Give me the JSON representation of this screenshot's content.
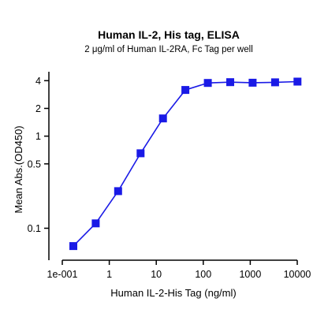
{
  "chart_data": {
    "type": "line",
    "title": "Human IL-2, His tag, ELISA",
    "subtitle": "2 μg/ml of Human IL-2RA, Fc Tag per well",
    "xlabel": "Human IL-2-His Tag (ng/ml)",
    "ylabel": "Mean Abs.(OD450)",
    "x_scale": "log",
    "y_scale": "log",
    "xlim": [
      0.1,
      10000
    ],
    "ylim": [
      0.045,
      5
    ],
    "x_ticks": [
      {
        "value": 0.1,
        "label": "1e-001"
      },
      {
        "value": 1,
        "label": "1"
      },
      {
        "value": 10,
        "label": "10"
      },
      {
        "value": 100,
        "label": "100"
      },
      {
        "value": 1000,
        "label": "1000"
      },
      {
        "value": 10000,
        "label": "10000"
      }
    ],
    "y_ticks": [
      {
        "value": 0.1,
        "label": "0.1"
      },
      {
        "value": 0.5,
        "label": "0.5"
      },
      {
        "value": 1,
        "label": "1"
      },
      {
        "value": 2,
        "label": "2"
      },
      {
        "value": 4,
        "label": "4"
      }
    ],
    "grid": false,
    "legend": "none",
    "series_color": "#1a1ae6",
    "marker": "square",
    "series": [
      {
        "x": [
          0.1715,
          0.5144,
          1.543,
          4.63,
          13.89,
          41.67,
          125,
          375,
          1125,
          3375,
          10125
        ],
        "y": [
          0.064,
          0.113,
          0.253,
          0.651,
          1.556,
          3.17,
          3.776,
          3.852,
          3.801,
          3.843,
          3.912
        ]
      }
    ]
  }
}
